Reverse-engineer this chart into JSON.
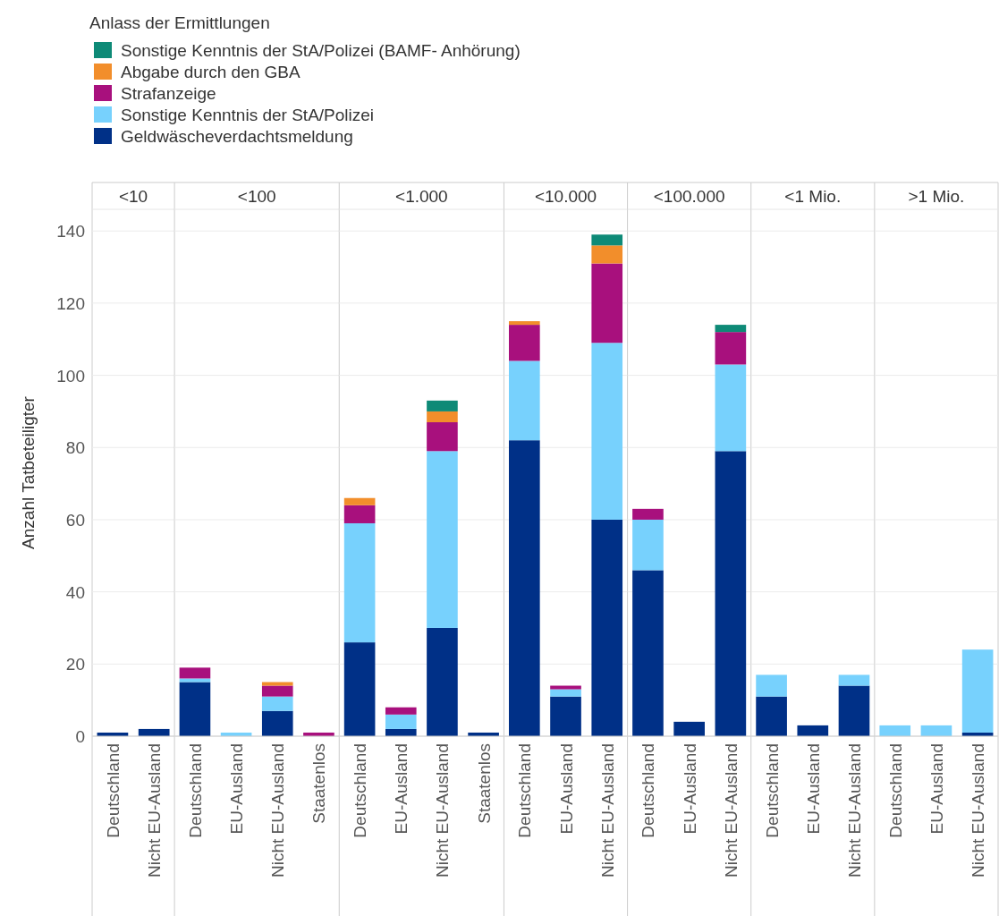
{
  "chart_data": [
    {
      "type": "bar",
      "stacked": true,
      "title": "<10",
      "ylabel": "Anzahl Tatbeteiligter",
      "legend_title": "Anlass der Ermittlungen",
      "legend": "top",
      "grid": "y",
      "ylim": [
        0,
        146
      ],
      "yticks": [
        0,
        20,
        40,
        60,
        80,
        100,
        120,
        140
      ],
      "categories": [
        "Deutschland",
        "Nicht EU-Ausland"
      ],
      "series": [
        {
          "name": "Geldwäscheverdachtsmeldung",
          "color": "#003087",
          "values": [
            1,
            2
          ]
        },
        {
          "name": "Sonstige Kenntnis der StA/Polizei",
          "color": "#77d1fd",
          "values": [
            null,
            null
          ]
        },
        {
          "name": "Strafanzeige",
          "color": "#a8107d",
          "values": [
            null,
            null
          ]
        },
        {
          "name": "Abgabe durch den GBA",
          "color": "#f28e2b",
          "values": [
            null,
            null
          ]
        },
        {
          "name": "Sonstige Kenntnis der StA/Polizei (BAMF- Anhörung)",
          "color": "#0e8a77",
          "values": [
            null,
            null
          ]
        }
      ]
    },
    {
      "type": "bar",
      "stacked": true,
      "title": "<100",
      "grid": "y",
      "tick_labels": "x",
      "ylim": [
        0,
        146
      ],
      "categories": [
        "Deutschland",
        "EU-Ausland",
        "Nicht EU-Ausland",
        "Staatenlos"
      ],
      "series": [
        {
          "color": "#003087",
          "values": [
            15,
            null,
            7,
            null
          ]
        },
        {
          "color": "#77d1fd",
          "values": [
            1,
            1,
            4,
            null
          ]
        },
        {
          "color": "#a8107d",
          "values": [
            3,
            null,
            3,
            1
          ]
        },
        {
          "color": "#f28e2b",
          "values": [
            null,
            null,
            1,
            null
          ]
        }
      ]
    },
    {
      "type": "bar",
      "stacked": true,
      "title": "<1.000",
      "grid": "y",
      "tick_labels": "x",
      "ylim": [
        0,
        146
      ],
      "categories": [
        "Deutschland",
        "EU-Ausland",
        "Nicht EU-Ausland",
        "Staatenlos"
      ],
      "series": [
        {
          "color": "#003087",
          "values": [
            26,
            2,
            30,
            1
          ]
        },
        {
          "color": "#77d1fd",
          "values": [
            33,
            4,
            49,
            null
          ]
        },
        {
          "color": "#a8107d",
          "values": [
            5,
            2,
            8,
            null
          ]
        },
        {
          "color": "#f28e2b",
          "values": [
            2,
            null,
            3,
            null
          ]
        },
        {
          "color": "#0e8a77",
          "values": [
            null,
            null,
            3,
            null
          ]
        }
      ]
    },
    {
      "type": "bar",
      "stacked": true,
      "title": "<10.000",
      "grid": "y",
      "tick_labels": "x",
      "ylim": [
        0,
        146
      ],
      "categories": [
        "Deutschland",
        "EU-Ausland",
        "Nicht EU-Ausland"
      ],
      "series": [
        {
          "color": "#003087",
          "values": [
            82,
            11,
            60
          ]
        },
        {
          "color": "#77d1fd",
          "values": [
            22,
            2,
            49
          ]
        },
        {
          "color": "#a8107d",
          "values": [
            10,
            1,
            22
          ]
        },
        {
          "color": "#f28e2b",
          "values": [
            1,
            null,
            5
          ]
        },
        {
          "color": "#0e8a77",
          "values": [
            null,
            null,
            3
          ]
        }
      ]
    },
    {
      "type": "bar",
      "stacked": true,
      "title": "<100.000",
      "grid": "y",
      "tick_labels": "x",
      "ylim": [
        0,
        146
      ],
      "categories": [
        "Deutschland",
        "EU-Ausland",
        "Nicht EU-Ausland"
      ],
      "series": [
        {
          "color": "#003087",
          "values": [
            46,
            4,
            79
          ]
        },
        {
          "color": "#77d1fd",
          "values": [
            14,
            null,
            24
          ]
        },
        {
          "color": "#a8107d",
          "values": [
            3,
            null,
            9
          ]
        },
        {
          "color": "#0e8a77",
          "values": [
            null,
            null,
            2
          ]
        }
      ]
    },
    {
      "type": "bar",
      "stacked": true,
      "title": "<1 Mio.",
      "grid": "y",
      "tick_labels": "x",
      "ylim": [
        0,
        146
      ],
      "categories": [
        "Deutschland",
        "EU-Ausland",
        "Nicht EU-Ausland"
      ],
      "series": [
        {
          "color": "#003087",
          "values": [
            11,
            3,
            14
          ]
        },
        {
          "color": "#77d1fd",
          "values": [
            6,
            null,
            3
          ]
        }
      ]
    },
    {
      "type": "bar",
      "stacked": true,
      "title": ">1 Mio.",
      "grid": "y",
      "tick_labels": "x",
      "ylim": [
        0,
        146
      ],
      "categories": [
        "Deutschland",
        "EU-Ausland",
        "Nicht EU-Ausland"
      ],
      "series": [
        {
          "color": "#003087",
          "values": [
            null,
            null,
            1
          ]
        },
        {
          "color": "#77d1fd",
          "values": [
            3,
            3,
            23
          ]
        }
      ]
    }
  ]
}
